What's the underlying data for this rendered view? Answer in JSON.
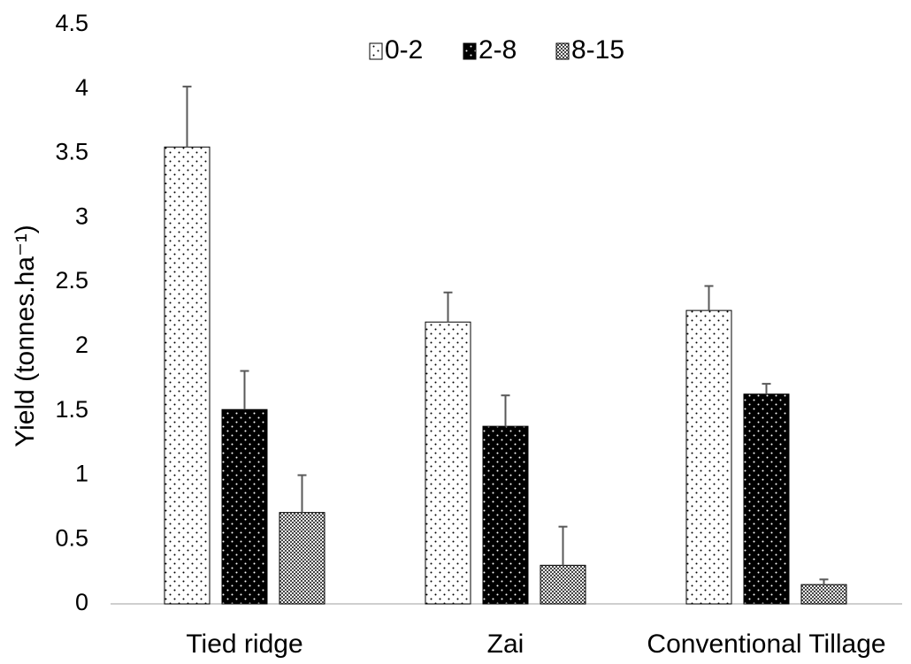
{
  "chart_data": {
    "type": "bar",
    "y_label": "Yield (tonnes.ha⁻¹)",
    "categories": [
      "Tied ridge",
      "Zai",
      "Conventional Tillage"
    ],
    "series": [
      {
        "name": "0-2",
        "color": "#ffffff",
        "values": [
          3.55,
          2.19,
          2.28
        ],
        "errors": [
          0.47,
          0.23,
          0.19
        ]
      },
      {
        "name": "2-8",
        "color": "#000000",
        "values": [
          1.51,
          1.38,
          1.63
        ],
        "errors": [
          0.3,
          0.24,
          0.08
        ]
      },
      {
        "name": "8-15",
        "color": "#9a9a9a",
        "values": [
          0.71,
          0.3,
          0.15
        ],
        "errors": [
          0.29,
          0.3,
          0.04
        ]
      }
    ],
    "ylim": [
      0,
      4.5
    ],
    "yticks": [
      0,
      0.5,
      1,
      1.5,
      2,
      2.5,
      3,
      3.5,
      4,
      4.5
    ],
    "grid": false,
    "legend": "top"
  }
}
